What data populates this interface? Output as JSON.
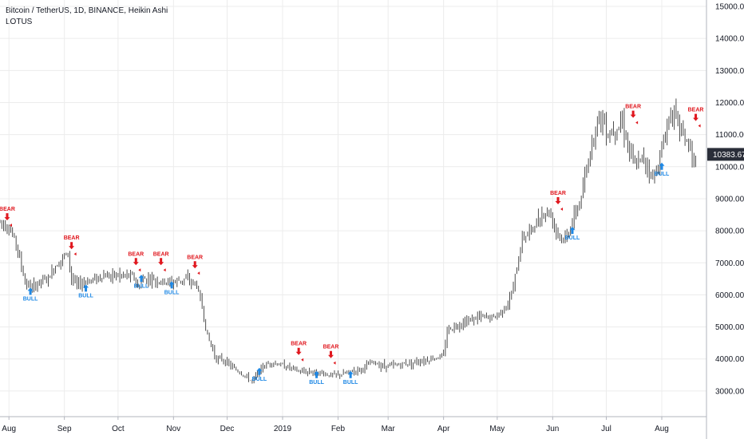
{
  "header": {
    "symbol_line": "Bitcoin / TetherUS, 1D, BINANCE, Heikin Ashi",
    "indicator": "LOTUS"
  },
  "price_label": "10383.67",
  "colors": {
    "bear": "#e0171e",
    "bull": "#1e88e5",
    "candle": "#3a3a3a",
    "grid": "#ececec",
    "axis": "#b2b5be",
    "price_bg": "#2a2e39"
  },
  "chart_data": {
    "type": "line",
    "title": "",
    "xlabel": "",
    "ylabel": "",
    "ylim": [
      2200,
      15200
    ],
    "y_ticks": [
      "3000.00",
      "4000.00",
      "5000.00",
      "6000.00",
      "7000.00",
      "8000.00",
      "9000.00",
      "10000.00",
      "11000.00",
      "12000.00",
      "13000.00",
      "14000.00",
      "15000.00"
    ],
    "x_ticks": [
      "Aug",
      "Sep",
      "Oct",
      "Nov",
      "Dec",
      "2019",
      "Feb",
      "Mar",
      "Apr",
      "May",
      "Jun",
      "Jul",
      "Aug"
    ],
    "x_tick_dates": [
      "2018-08-01",
      "2018-09-01",
      "2018-10-01",
      "2018-11-01",
      "2018-12-01",
      "2019-01-01",
      "2019-02-01",
      "2019-03-01",
      "2019-04-01",
      "2019-05-01",
      "2019-06-01",
      "2019-07-01",
      "2019-08-01"
    ],
    "xlim": [
      "2018-07-27",
      "2019-08-26"
    ],
    "series": [
      {
        "x": [
          "2018-07-27",
          "2018-08-01",
          "2018-08-05",
          "2018-08-10",
          "2018-08-14",
          "2018-08-18",
          "2018-08-23",
          "2018-08-28",
          "2018-09-03",
          "2018-09-05",
          "2018-09-08",
          "2018-09-12",
          "2018-09-18",
          "2018-09-22",
          "2018-09-28",
          "2018-10-05",
          "2018-10-10",
          "2018-10-12",
          "2018-10-15",
          "2018-10-20",
          "2018-10-25",
          "2018-11-01",
          "2018-11-07",
          "2018-11-11",
          "2018-11-14",
          "2018-11-17",
          "2018-11-20",
          "2018-11-25",
          "2018-11-28",
          "2018-12-05",
          "2018-12-10",
          "2018-12-15",
          "2018-12-20",
          "2018-12-25",
          "2019-01-01",
          "2019-01-07",
          "2019-01-10",
          "2019-01-15",
          "2019-01-20",
          "2019-01-27",
          "2019-02-02",
          "2019-02-08",
          "2019-02-15",
          "2019-02-20",
          "2019-02-25",
          "2019-03-05",
          "2019-03-15",
          "2019-03-25",
          "2019-04-01",
          "2019-04-03",
          "2019-04-10",
          "2019-04-20",
          "2019-04-30",
          "2019-05-08",
          "2019-05-12",
          "2019-05-15",
          "2019-05-20",
          "2019-05-26",
          "2019-05-30",
          "2019-06-05",
          "2019-06-08",
          "2019-06-12",
          "2019-06-17",
          "2019-06-22",
          "2019-06-26",
          "2019-06-29",
          "2019-07-02",
          "2019-07-05",
          "2019-07-10",
          "2019-07-14",
          "2019-07-17",
          "2019-07-22",
          "2019-07-27",
          "2019-08-01",
          "2019-08-06",
          "2019-08-10",
          "2019-08-15",
          "2019-08-20"
        ],
        "values": [
          8300,
          8100,
          7600,
          6400,
          6200,
          6400,
          6500,
          7000,
          7300,
          6500,
          6300,
          6400,
          6500,
          6600,
          6600,
          6600,
          6550,
          6200,
          6500,
          6500,
          6400,
          6400,
          6500,
          6400,
          6300,
          5600,
          4700,
          4000,
          4000,
          3700,
          3500,
          3300,
          3700,
          3900,
          3800,
          3700,
          3600,
          3600,
          3600,
          3500,
          3500,
          3600,
          3700,
          3900,
          3800,
          3800,
          3900,
          4000,
          4100,
          4900,
          5100,
          5300,
          5300,
          5800,
          6800,
          7800,
          8000,
          8500,
          8600,
          7800,
          7700,
          8300,
          9000,
          10500,
          11500,
          11500,
          11000,
          11200,
          11400,
          10500,
          10000,
          10300,
          9600,
          10500,
          11800,
          11400,
          10800,
          10000
        ]
      }
    ],
    "signals": [
      {
        "type": "BEAR",
        "date": "2018-07-31",
        "value": 8200
      },
      {
        "type": "BULL",
        "date": "2018-08-13",
        "value": 6300
      },
      {
        "type": "BEAR",
        "date": "2018-09-05",
        "value": 7300
      },
      {
        "type": "BULL",
        "date": "2018-09-13",
        "value": 6400
      },
      {
        "type": "BEAR",
        "date": "2018-10-11",
        "value": 6800
      },
      {
        "type": "BULL",
        "date": "2018-10-14",
        "value": 6700
      },
      {
        "type": "BEAR",
        "date": "2018-10-25",
        "value": 6800
      },
      {
        "type": "BULL",
        "date": "2018-10-31",
        "value": 6500
      },
      {
        "type": "BEAR",
        "date": "2018-11-13",
        "value": 6700
      },
      {
        "type": "BULL",
        "date": "2018-12-19",
        "value": 3800
      },
      {
        "type": "BEAR",
        "date": "2019-01-10",
        "value": 4000
      },
      {
        "type": "BULL",
        "date": "2019-01-20",
        "value": 3700
      },
      {
        "type": "BEAR",
        "date": "2019-01-28",
        "value": 3900
      },
      {
        "type": "BULL",
        "date": "2019-02-08",
        "value": 3700
      },
      {
        "type": "BEAR",
        "date": "2019-06-04",
        "value": 8700
      },
      {
        "type": "BULL",
        "date": "2019-06-12",
        "value": 8200
      },
      {
        "type": "BEAR",
        "date": "2019-07-16",
        "value": 11400
      },
      {
        "type": "BULL",
        "date": "2019-08-01",
        "value": 10200
      },
      {
        "type": "BEAR",
        "date": "2019-08-20",
        "value": 11300
      }
    ]
  }
}
